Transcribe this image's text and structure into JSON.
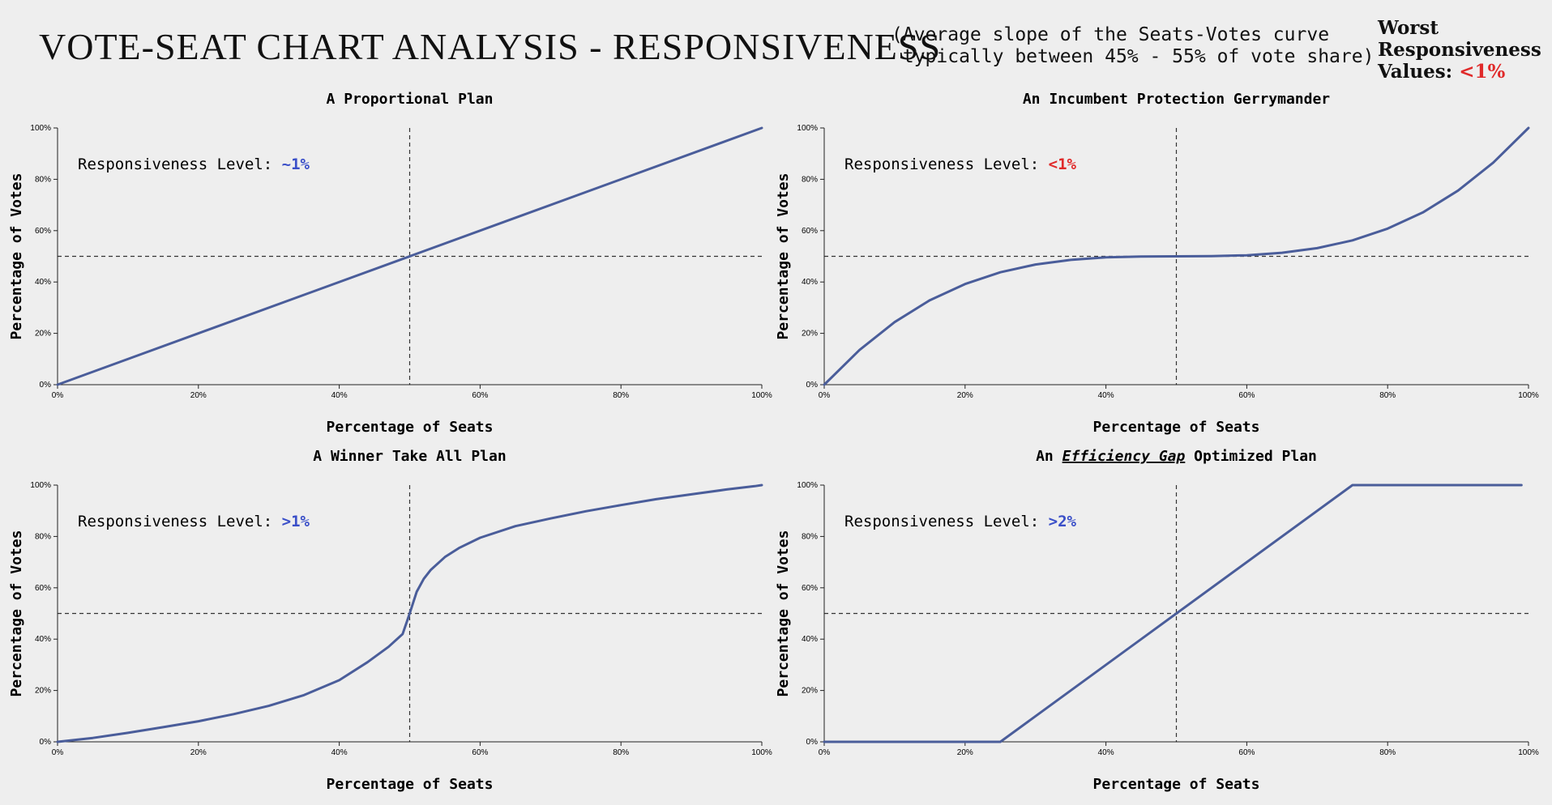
{
  "header": {
    "title": "VOTE-SEAT CHART ANALYSIS - RESPONSIVENESS",
    "subtitle_line1": "(Average slope of the Seats-Votes curve",
    "subtitle_line2": " typically between 45% - 55% of vote share)",
    "worst_line1": "Worst",
    "worst_line2": "Responsiveness",
    "worst_line3": "Values:",
    "worst_value": "<1%",
    "worst_value_color": "#e02a2a"
  },
  "colors": {
    "line": "#4a5d9a",
    "good": "#3a4fc8",
    "bad": "#e02a2a",
    "axis": "#222222"
  },
  "chart_data": [
    {
      "type": "line",
      "title": "A Proportional Plan",
      "xlabel": "Percentage of Seats",
      "ylabel": "Percentage of Votes",
      "xlim": [
        0,
        100
      ],
      "ylim": [
        0,
        100
      ],
      "xticks": [
        "0%",
        "20%",
        "40%",
        "60%",
        "80%",
        "100%"
      ],
      "yticks": [
        "0%",
        "20%",
        "40%",
        "60%",
        "80%",
        "100%"
      ],
      "reference_lines": {
        "x": 50,
        "y": 50
      },
      "responsiveness_label": "Responsiveness Level:",
      "responsiveness_value": "~1%",
      "responsiveness_color": "#3a4fc8",
      "x": [
        0,
        100
      ],
      "y": [
        0,
        100
      ]
    },
    {
      "type": "line",
      "title": "An Incumbent Protection Gerrymander",
      "xlabel": "Percentage of Seats",
      "ylabel": "Percentage of Votes",
      "xlim": [
        0,
        100
      ],
      "ylim": [
        0,
        100
      ],
      "xticks": [
        "0%",
        "20%",
        "40%",
        "60%",
        "80%",
        "100%"
      ],
      "yticks": [
        "0%",
        "20%",
        "40%",
        "60%",
        "80%",
        "100%"
      ],
      "reference_lines": {
        "x": 50,
        "y": 50
      },
      "responsiveness_label": "Responsiveness Level:",
      "responsiveness_value": "<1%",
      "responsiveness_color": "#e02a2a",
      "x": [
        0,
        5,
        10,
        15,
        20,
        25,
        30,
        35,
        40,
        45,
        50,
        55,
        60,
        65,
        70,
        75,
        80,
        85,
        90,
        95,
        100
      ],
      "y": [
        0,
        13.5,
        24.4,
        32.9,
        39.2,
        43.8,
        46.8,
        48.6,
        49.6,
        49.9,
        50,
        50.1,
        50.4,
        51.4,
        53.2,
        56.2,
        60.8,
        67.1,
        75.6,
        86.5,
        100
      ]
    },
    {
      "type": "line",
      "title": "A Winner Take All Plan",
      "xlabel": "Percentage of Seats",
      "ylabel": "Percentage of Votes",
      "xlim": [
        0,
        100
      ],
      "ylim": [
        0,
        100
      ],
      "xticks": [
        "0%",
        "20%",
        "40%",
        "60%",
        "80%",
        "100%"
      ],
      "yticks": [
        "0%",
        "20%",
        "40%",
        "60%",
        "80%",
        "100%"
      ],
      "reference_lines": {
        "x": 50,
        "y": 50
      },
      "responsiveness_label": "Responsiveness Level:",
      "responsiveness_value": ">1%",
      "responsiveness_color": "#3a4fc8",
      "x": [
        0,
        5,
        10,
        15,
        20,
        25,
        30,
        35,
        40,
        44,
        47,
        49,
        50,
        51,
        52,
        53,
        55,
        57,
        60,
        65,
        70,
        75,
        80,
        85,
        90,
        95,
        99,
        100
      ],
      "y": [
        0,
        1.5,
        3.5,
        5.7,
        8.0,
        10.8,
        14.0,
        18.2,
        24.0,
        31.0,
        37.0,
        42.0,
        50,
        58.5,
        63.5,
        67.0,
        72.0,
        75.5,
        79.5,
        84.0,
        87.0,
        89.8,
        92.2,
        94.5,
        96.4,
        98.3,
        99.6,
        100
      ]
    },
    {
      "type": "line",
      "title_prefix": "An ",
      "title_emphasis": "Efficiency Gap",
      "title_suffix": " Optimized Plan",
      "xlabel": "Percentage of Seats",
      "ylabel": "Percentage of Votes",
      "xlim": [
        0,
        100
      ],
      "ylim": [
        0,
        100
      ],
      "xticks": [
        "0%",
        "20%",
        "40%",
        "60%",
        "80%",
        "100%"
      ],
      "yticks": [
        "0%",
        "20%",
        "40%",
        "60%",
        "80%",
        "100%"
      ],
      "reference_lines": {
        "x": 50,
        "y": 50
      },
      "responsiveness_label": "Responsiveness Level:",
      "responsiveness_value": ">2%",
      "responsiveness_color": "#3a4fc8",
      "x": [
        0,
        25,
        75,
        99
      ],
      "y": [
        0,
        0,
        100,
        100
      ]
    }
  ]
}
